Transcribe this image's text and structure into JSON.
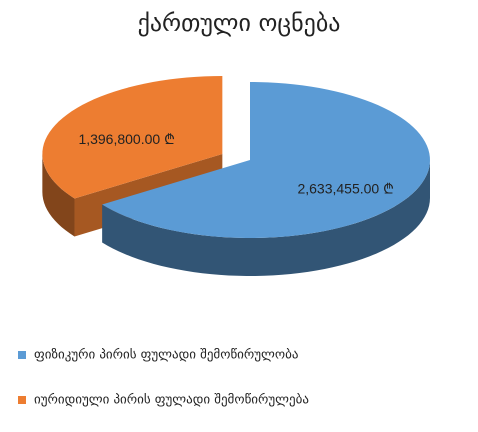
{
  "chart_data": {
    "type": "pie",
    "title": "ქართული ოცნება",
    "categories": [
      "ფიზიკური პირის ფულადი შემოწირულობა",
      "იურიდიული პირის ფულადი შემოწირულება"
    ],
    "values": [
      2633455,
      1396800
    ],
    "value_labels": [
      "2,633,455.00 ₾",
      "1,396,800.00 ₾"
    ],
    "colors": [
      "#5b9bd5",
      "#ed7d31"
    ],
    "legend": "bottom"
  }
}
